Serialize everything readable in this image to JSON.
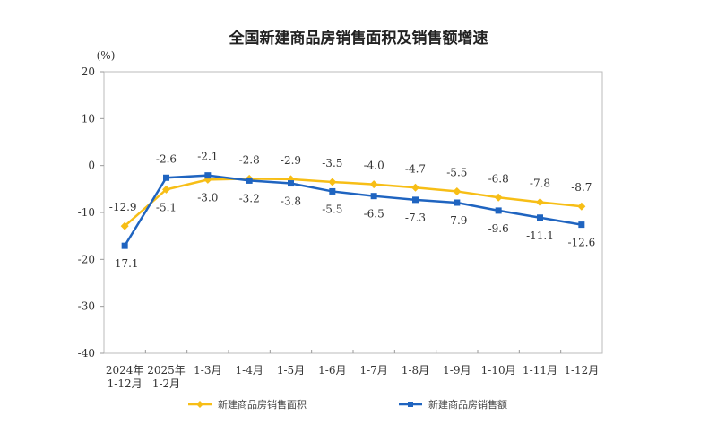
{
  "chart_data": {
    "type": "line",
    "title": "全国新建商品房销售面积及销售额增速",
    "ylabel": "(%)",
    "ylim": [
      -40,
      20
    ],
    "yticks": [
      20,
      10,
      0,
      -10,
      -20,
      -30,
      -40
    ],
    "grid": false,
    "legend_position": "bottom",
    "categories": [
      [
        "2024年",
        "1-12月"
      ],
      [
        "2025年",
        "1-2月"
      ],
      [
        "1-3月"
      ],
      [
        "1-4月"
      ],
      [
        "1-5月"
      ],
      [
        "1-6月"
      ],
      [
        "1-7月"
      ],
      [
        "1-8月"
      ],
      [
        "1-9月"
      ],
      [
        "1-10月"
      ],
      [
        "1-11月"
      ],
      [
        "1-12月"
      ]
    ],
    "series": [
      {
        "name": "新建商品房销售面积",
        "color": "#F7BE16",
        "marker": "diamond",
        "values": [
          -12.9,
          -5.1,
          -3.0,
          -2.8,
          -2.9,
          -3.5,
          -4.0,
          -4.7,
          -5.5,
          -6.8,
          -7.8,
          -8.7
        ]
      },
      {
        "name": "新建商品房销售额",
        "color": "#1F64C0",
        "marker": "square",
        "values": [
          -17.1,
          -2.6,
          -2.1,
          -3.2,
          -3.8,
          -5.5,
          -6.5,
          -7.3,
          -7.9,
          -9.6,
          -11.1,
          -12.6
        ]
      }
    ]
  }
}
